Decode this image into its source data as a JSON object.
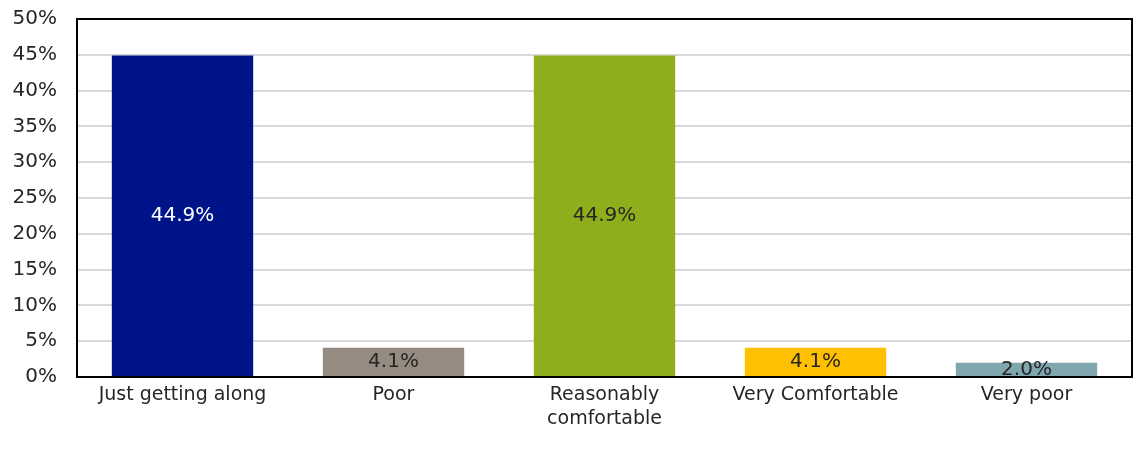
{
  "chart_data": {
    "type": "bar",
    "categories": [
      "Just getting along",
      "Poor",
      "Reasonably comfortable",
      "Very Comfortable",
      "Very poor"
    ],
    "values": [
      44.9,
      4.1,
      44.9,
      4.1,
      2.0
    ],
    "colors": [
      "#001489",
      "#968b80",
      "#8fae1b",
      "#ffc000",
      "#7fa7ad"
    ],
    "value_labels": [
      "44.9%",
      "4.1%",
      "44.9%",
      "4.1%",
      "2.0%"
    ],
    "ylim": [
      0,
      50
    ],
    "yticks": [
      {
        "value": 0,
        "label": "0%"
      },
      {
        "value": 5,
        "label": "5%"
      },
      {
        "value": 10,
        "label": "10%"
      },
      {
        "value": 15,
        "label": "15%"
      },
      {
        "value": 20,
        "label": "20%"
      },
      {
        "value": 25,
        "label": "25%"
      },
      {
        "value": 30,
        "label": "30%"
      },
      {
        "value": 35,
        "label": "35%"
      },
      {
        "value": 40,
        "label": "40%"
      },
      {
        "value": 45,
        "label": "45%"
      },
      {
        "value": 50,
        "label": "50%"
      }
    ],
    "grid": "y"
  }
}
